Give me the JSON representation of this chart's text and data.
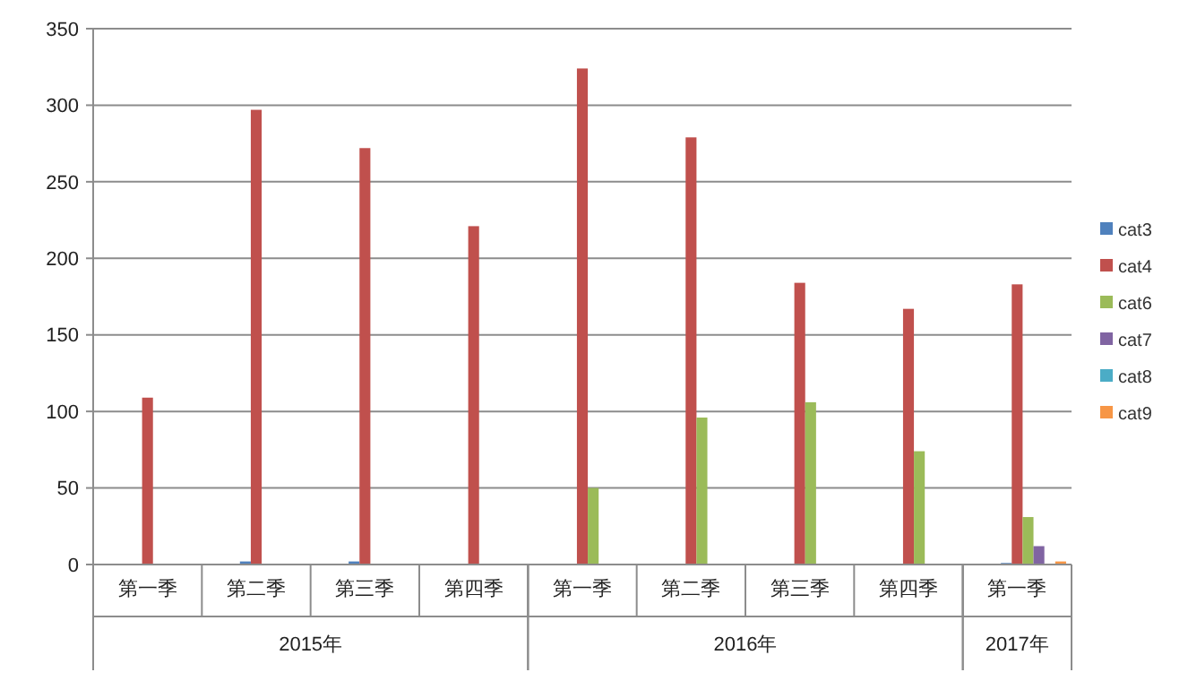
{
  "chart_data": {
    "type": "bar",
    "categories": [
      "第一季",
      "第二季",
      "第三季",
      "第四季",
      "第一季",
      "第二季",
      "第三季",
      "第四季",
      "第一季"
    ],
    "series": [
      {
        "name": "cat3",
        "color": "#4f81bd",
        "values": [
          0,
          2,
          2,
          0,
          0,
          0,
          0,
          0,
          1
        ]
      },
      {
        "name": "cat4",
        "color": "#c0504d",
        "values": [
          109,
          297,
          272,
          221,
          324,
          279,
          184,
          167,
          183
        ]
      },
      {
        "name": "cat6",
        "color": "#9bbb59",
        "values": [
          0,
          0,
          0,
          0,
          50,
          96,
          106,
          74,
          31
        ]
      },
      {
        "name": "cat7",
        "color": "#8064a2",
        "values": [
          0,
          0,
          0,
          0,
          0,
          0,
          0,
          0,
          12
        ]
      },
      {
        "name": "cat8",
        "color": "#4bacc6",
        "values": [
          0,
          0,
          0,
          0,
          0,
          0,
          0,
          0,
          0
        ]
      },
      {
        "name": "cat9",
        "color": "#f79646",
        "values": [
          0,
          0,
          0,
          0,
          0,
          0,
          0,
          0,
          2
        ]
      }
    ],
    "annotations": [
      "2015年",
      "2016年",
      "2017年"
    ],
    "ylim": [
      0,
      350
    ],
    "yticks": [
      0,
      50,
      100,
      150,
      200,
      250,
      300,
      350
    ],
    "grid": "y",
    "legend": "right"
  }
}
